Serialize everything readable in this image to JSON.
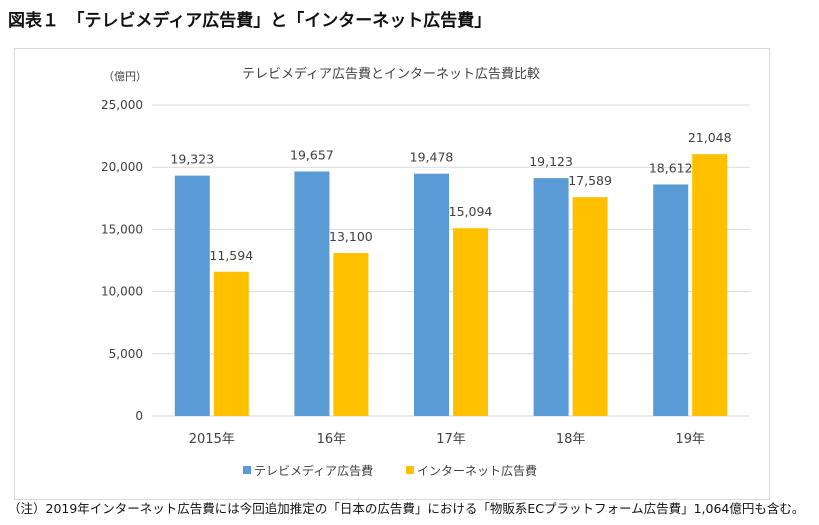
{
  "figure_title": "図表１　「テレビメディア広告費」と「インターネット広告費」",
  "footnote": "（注）2019年インターネット広告費には今回追加推定の「日本の広告費」における「物販系ECプラットフォーム広告費」1,064億円も含む。",
  "chart_data": {
    "type": "bar",
    "title": "テレビメディア広告費とインターネット広告費比較",
    "ylabel": "（億円）",
    "xlabel": "",
    "categories": [
      "2015年",
      "16年",
      "17年",
      "18年",
      "19年"
    ],
    "ylim": [
      0,
      25000
    ],
    "yticks": [
      0,
      5000,
      10000,
      15000,
      20000,
      25000
    ],
    "ytick_labels": [
      "0",
      "5,000",
      "10,000",
      "15,000",
      "20,000",
      "25,000"
    ],
    "grid": true,
    "legend_position": "bottom",
    "series": [
      {
        "name": "テレビメディア広告費",
        "color": "#5b9bd5",
        "values": [
          19323,
          19657,
          19478,
          19123,
          18612
        ],
        "labels": [
          "19,323",
          "19,657",
          "19,478",
          "19,123",
          "18,612"
        ]
      },
      {
        "name": "インターネット広告費",
        "color": "#ffc000",
        "values": [
          11594,
          13100,
          15094,
          17589,
          21048
        ],
        "labels": [
          "11,594",
          "13,100",
          "15,094",
          "17,589",
          "21,048"
        ]
      }
    ]
  }
}
